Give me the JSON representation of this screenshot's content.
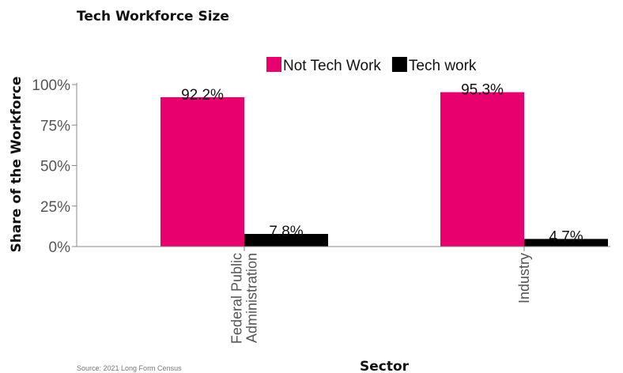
{
  "chart_data": {
    "type": "bar",
    "title": "Tech Workforce Size",
    "xlabel": "Sector",
    "ylabel": "Share of the Workforce",
    "categories": [
      "Federal Public Administration",
      "Industry"
    ],
    "category_lines": [
      [
        "Federal Public",
        "Administration"
      ],
      [
        "Industry"
      ]
    ],
    "series": [
      {
        "name": "Not Tech Work",
        "color": "#E8006E",
        "values": [
          92.2,
          95.3
        ],
        "labels": [
          "92.2%",
          "95.3%"
        ]
      },
      {
        "name": "Tech work",
        "color": "#000000",
        "values": [
          7.8,
          4.7
        ],
        "labels": [
          "7.8%",
          "4.7%"
        ]
      }
    ],
    "ylim": [
      0,
      100
    ],
    "yticks": [
      {
        "value": 0,
        "label": "0%"
      },
      {
        "value": 25,
        "label": "25%"
      },
      {
        "value": 50,
        "label": "50%"
      },
      {
        "value": 75,
        "label": "75%"
      },
      {
        "value": 100,
        "label": "100%"
      }
    ],
    "legend_position": "top-right",
    "grid": false,
    "source": "Source: 2021 Long Form Census"
  }
}
